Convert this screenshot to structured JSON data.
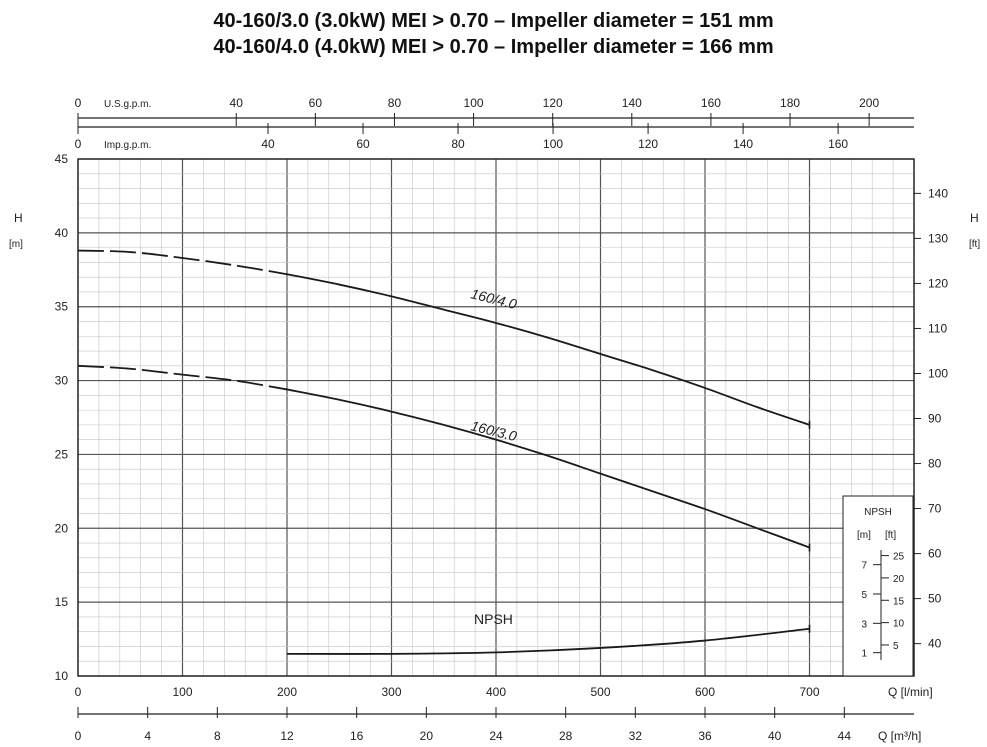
{
  "titles": [
    "40-160/3.0 (3.0kW) MEI > 0.70 – Impeller diameter = 151 mm",
    "40-160/4.0 (4.0kW) MEI > 0.70 – Impeller diameter = 166 mm"
  ],
  "chart_data": {
    "type": "line",
    "axes": {
      "x_main": {
        "label": "Q [l/min]",
        "range": [
          0,
          800
        ],
        "ticks": [
          0,
          100,
          200,
          300,
          400,
          500,
          600,
          700
        ]
      },
      "x_m3h": {
        "label": "Q [m³/h]",
        "range": [
          0,
          48
        ],
        "ticks": [
          0,
          4,
          8,
          12,
          16,
          20,
          24,
          28,
          32,
          36,
          40,
          44
        ]
      },
      "x_usgpm": {
        "label": "U.S.g.p.m.",
        "range": [
          0,
          211.34
        ],
        "ticks": [
          0,
          40,
          60,
          80,
          100,
          120,
          140,
          160,
          180,
          200
        ]
      },
      "x_impgpm": {
        "label": "Imp.g.p.m.",
        "range": [
          0,
          175.98
        ],
        "ticks": [
          0,
          40,
          60,
          80,
          100,
          120,
          140,
          160
        ]
      },
      "y_left": {
        "label": "H",
        "unit": "[m]",
        "range": [
          10,
          45
        ],
        "ticks": [
          10,
          15,
          20,
          25,
          30,
          35,
          40,
          45
        ]
      },
      "y_right": {
        "label": "H",
        "unit": "[ft]",
        "range": [
          32.81,
          147.64
        ],
        "ticks": [
          40,
          50,
          60,
          70,
          80,
          90,
          100,
          110,
          120,
          130,
          140
        ]
      }
    },
    "grid": true,
    "series": [
      {
        "name": "160/4.0",
        "color": "#1a1a1a",
        "dashed_until": 200,
        "points": [
          [
            0,
            38.8
          ],
          [
            50,
            38.7
          ],
          [
            100,
            38.3
          ],
          [
            150,
            37.8
          ],
          [
            200,
            37.2
          ],
          [
            250,
            36.5
          ],
          [
            300,
            35.7
          ],
          [
            350,
            34.8
          ],
          [
            400,
            33.9
          ],
          [
            450,
            32.9
          ],
          [
            500,
            31.8
          ],
          [
            550,
            30.7
          ],
          [
            600,
            29.5
          ],
          [
            650,
            28.2
          ],
          [
            700,
            27.0
          ]
        ]
      },
      {
        "name": "160/3.0",
        "color": "#1a1a1a",
        "dashed_until": 200,
        "points": [
          [
            0,
            31.0
          ],
          [
            50,
            30.8
          ],
          [
            100,
            30.4
          ],
          [
            150,
            30.0
          ],
          [
            200,
            29.4
          ],
          [
            250,
            28.7
          ],
          [
            300,
            27.9
          ],
          [
            350,
            27.0
          ],
          [
            400,
            26.0
          ],
          [
            450,
            24.9
          ],
          [
            500,
            23.7
          ],
          [
            550,
            22.5
          ],
          [
            600,
            21.3
          ],
          [
            650,
            20.0
          ],
          [
            700,
            18.7
          ]
        ]
      },
      {
        "name": "NPSH",
        "color": "#1a1a1a",
        "points": [
          [
            200,
            11.5
          ],
          [
            300,
            11.5
          ],
          [
            400,
            11.6
          ],
          [
            500,
            11.9
          ],
          [
            600,
            12.4
          ],
          [
            700,
            13.2
          ]
        ]
      }
    ],
    "npsh_scale": {
      "title": "NPSH",
      "unit_m": "[m]",
      "unit_ft": "[ft]",
      "m_ticks": [
        1,
        3,
        5,
        7
      ],
      "ft_ticks": [
        5,
        10,
        15,
        20,
        25
      ]
    }
  }
}
